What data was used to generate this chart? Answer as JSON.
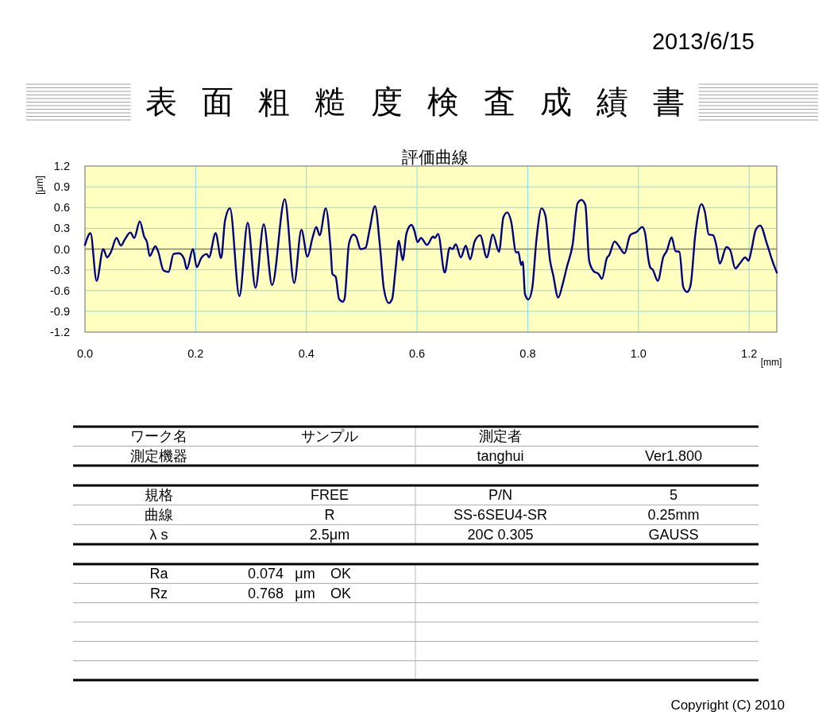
{
  "chart_data": [
    {
      "type": "line",
      "title": "表面粗糙度検査成績書",
      "subtitle": "評価曲線",
      "xlabel": "[mm]",
      "ylabel": "[μm]",
      "annotations": [
        "2013/6/15"
      ],
      "x": [
        0,
        0.01,
        0.021,
        0.033,
        0.04,
        0.047,
        0.057,
        0.065,
        0.072,
        0.082,
        0.089,
        0.099,
        0.107,
        0.112,
        0.117,
        0.127,
        0.132,
        0.142,
        0.151,
        0.16,
        0.17,
        0.179,
        0.184,
        0.195,
        0.202,
        0.21,
        0.22,
        0.224,
        0.236,
        0.246,
        0.253,
        0.262,
        0.279,
        0.294,
        0.308,
        0.323,
        0.338,
        0.361,
        0.378,
        0.391,
        0.402,
        0.411,
        0.418,
        0.424,
        0.435,
        0.444,
        0.447,
        0.453,
        0.459,
        0.466,
        0.469,
        0.477,
        0.485,
        0.49,
        0.498,
        0.507,
        0.514,
        0.524,
        0.533,
        0.54,
        0.549,
        0.555,
        0.561,
        0.567,
        0.574,
        0.581,
        0.59,
        0.595,
        0.601,
        0.607,
        0.618,
        0.629,
        0.632,
        0.638,
        0.65,
        0.659,
        0.664,
        0.67,
        0.679,
        0.688,
        0.696,
        0.704,
        0.714,
        0.726,
        0.737,
        0.748,
        0.756,
        0.763,
        0.77,
        0.779,
        0.783,
        0.788,
        0.791,
        0.795,
        0.801,
        0.808,
        0.816,
        0.825,
        0.832,
        0.84,
        0.846,
        0.855,
        0.863,
        0.871,
        0.881,
        0.89,
        0.897,
        0.904,
        0.911,
        0.919,
        0.928,
        0.934,
        0.943,
        0.947,
        0.957,
        0.964,
        0.975,
        0.985,
        0.997,
        1.007,
        1.012,
        1.018,
        1.021,
        1.026,
        1.035,
        1.045,
        1.051,
        1.06,
        1.067,
        1.074,
        1.081,
        1.088,
        1.094,
        1.103,
        1.114,
        1.12,
        1.127,
        1.135,
        1.14,
        1.147,
        1.159,
        1.166,
        1.175,
        1.183,
        1.193,
        1.199,
        1.204,
        1.212,
        1.22,
        1.232,
        1.242,
        1.25
      ],
      "series": [
        {
          "color": "#000080",
          "values": [
            0.06,
            0.23,
            -0.46,
            0.0,
            -0.12,
            -0.04,
            0.16,
            0.05,
            0.14,
            0.24,
            0.16,
            0.4,
            0.18,
            0.1,
            -0.1,
            0.04,
            -0.03,
            -0.31,
            -0.33,
            -0.07,
            -0.06,
            -0.14,
            -0.29,
            0.0,
            -0.26,
            -0.13,
            -0.07,
            -0.12,
            0.23,
            -0.13,
            0.41,
            0.59,
            -0.68,
            0.38,
            -0.56,
            0.36,
            -0.52,
            0.72,
            -0.49,
            0.28,
            -0.11,
            0.16,
            0.32,
            0.2,
            0.59,
            -0.02,
            -0.36,
            -0.4,
            -0.72,
            -0.76,
            -0.72,
            0.08,
            0.21,
            0.18,
            0.0,
            0.02,
            0.27,
            0.62,
            0.04,
            -0.57,
            -0.78,
            -0.72,
            -0.3,
            0.12,
            -0.16,
            0.23,
            0.35,
            0.27,
            0.1,
            0.16,
            0.06,
            0.18,
            0.16,
            0.22,
            -0.34,
            0.02,
            0.0,
            0.07,
            -0.12,
            0.05,
            -0.15,
            0.11,
            0.2,
            -0.12,
            0.21,
            -0.04,
            0.46,
            0.53,
            0.4,
            -0.05,
            -0.04,
            -0.23,
            -0.18,
            -0.65,
            -0.73,
            -0.57,
            0.16,
            0.59,
            0.48,
            -0.15,
            -0.38,
            -0.7,
            -0.51,
            -0.25,
            0.06,
            0.66,
            0.71,
            0.64,
            -0.17,
            -0.32,
            -0.36,
            -0.43,
            -0.13,
            -0.09,
            0.11,
            0.05,
            -0.06,
            0.2,
            0.25,
            0.32,
            0.23,
            -0.15,
            -0.26,
            -0.3,
            -0.46,
            -0.11,
            -0.03,
            0.17,
            -0.03,
            -0.04,
            -0.55,
            -0.62,
            -0.53,
            0.23,
            0.65,
            0.54,
            0.21,
            0.2,
            0.08,
            -0.21,
            0.03,
            -0.02,
            -0.28,
            -0.21,
            -0.12,
            -0.17,
            -0.02,
            0.28,
            0.34,
            0.08,
            -0.17,
            -0.34
          ]
        }
      ],
      "xlim": [
        0,
        1.25
      ],
      "xticks": [
        {
          "value": 0,
          "label": "0.0"
        },
        0.2,
        0.4,
        0.6,
        0.8,
        {
          "value": 1,
          "label": "1.0"
        },
        1.2
      ],
      "ylim": [
        -1.2,
        1.2
      ],
      "yticks": [
        -1.2,
        -0.9,
        -0.6,
        -0.3,
        {
          "value": 0,
          "label": "0.0"
        },
        0.3,
        0.6,
        0.9,
        1.2
      ],
      "grid": true,
      "ref_lines": [
        {
          "axis": "y",
          "value": 0,
          "color": "#808080"
        }
      ],
      "line_style": "solid"
    },
    {
      "type": "other",
      "annotations": [
        "ワーク名",
        "サンプル",
        "測定者",
        "測定機器",
        "tanghui",
        "Ver1.800",
        "規格",
        "FREE",
        "P/N",
        "5",
        "曲線",
        "R",
        "SS-6SEU4-SR",
        "0.25mm",
        "λ s",
        "2.5μm",
        "20C 0.305",
        "GAUSS",
        "Ra",
        "0.074",
        "μm",
        "OK",
        "Rz",
        "0.768",
        "μm",
        "OK",
        "Copyright (C) 2010"
      ]
    }
  ]
}
